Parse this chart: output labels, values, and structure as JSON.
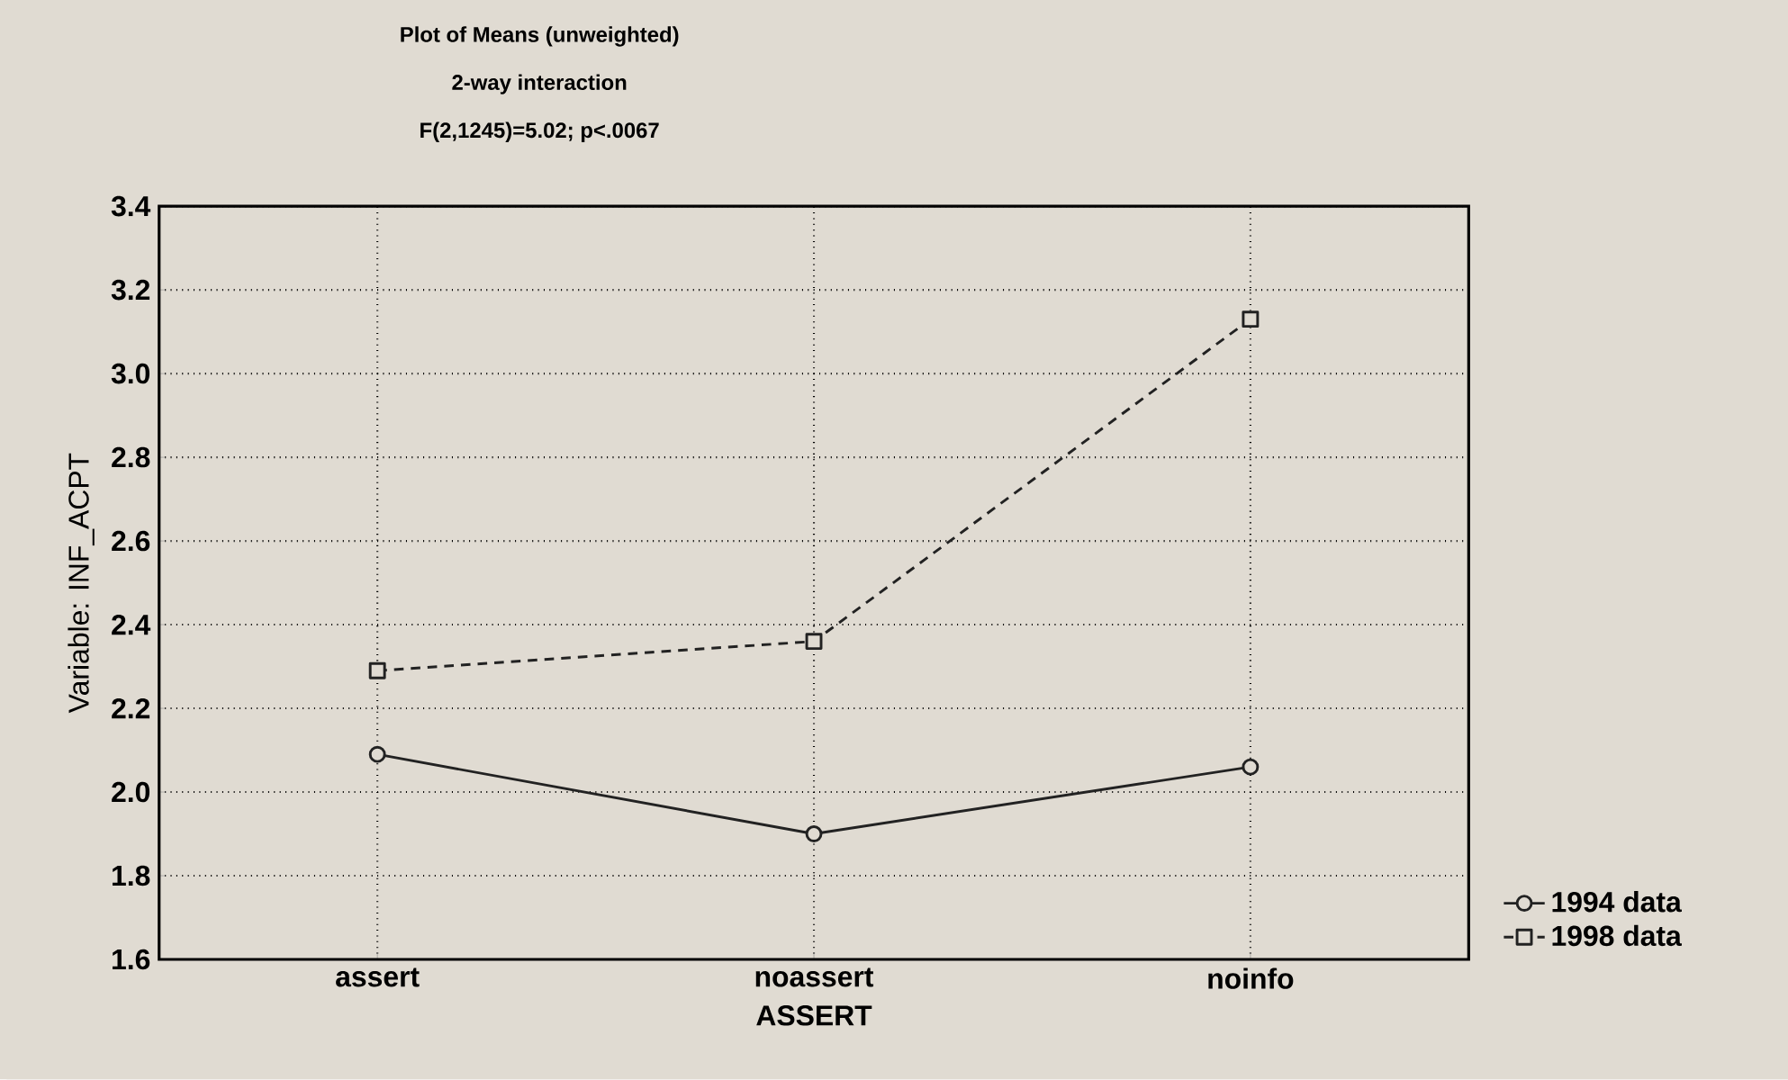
{
  "chart_data": {
    "type": "line",
    "title": "Plot of Means (unweighted)",
    "subtitle": "2-way interaction",
    "annotations": [
      "F(2,1245)=5.02; p<.0067"
    ],
    "xlabel": "ASSERT",
    "ylabel": "Variable: INF_ACPT",
    "categories": [
      "assert",
      "noassert",
      "noinfo"
    ],
    "series": [
      {
        "name": "1994 data",
        "color": "#222222",
        "marker": "circle",
        "line_style": "solid",
        "values": [
          2.09,
          1.9,
          2.06
        ]
      },
      {
        "name": "1998 data",
        "color": "#222222",
        "marker": "square",
        "line_style": "dashed",
        "values": [
          2.29,
          2.36,
          3.13
        ]
      }
    ],
    "ylim": [
      1.6,
      3.4
    ],
    "yticks": [
      1.6,
      1.8,
      {
        "value": 2.0,
        "label": "2.0"
      },
      2.2,
      2.4,
      2.6,
      2.8,
      {
        "value": 3.0,
        "label": "3.0"
      },
      3.2,
      3.4
    ],
    "grid": true,
    "legend": "bottom right"
  }
}
